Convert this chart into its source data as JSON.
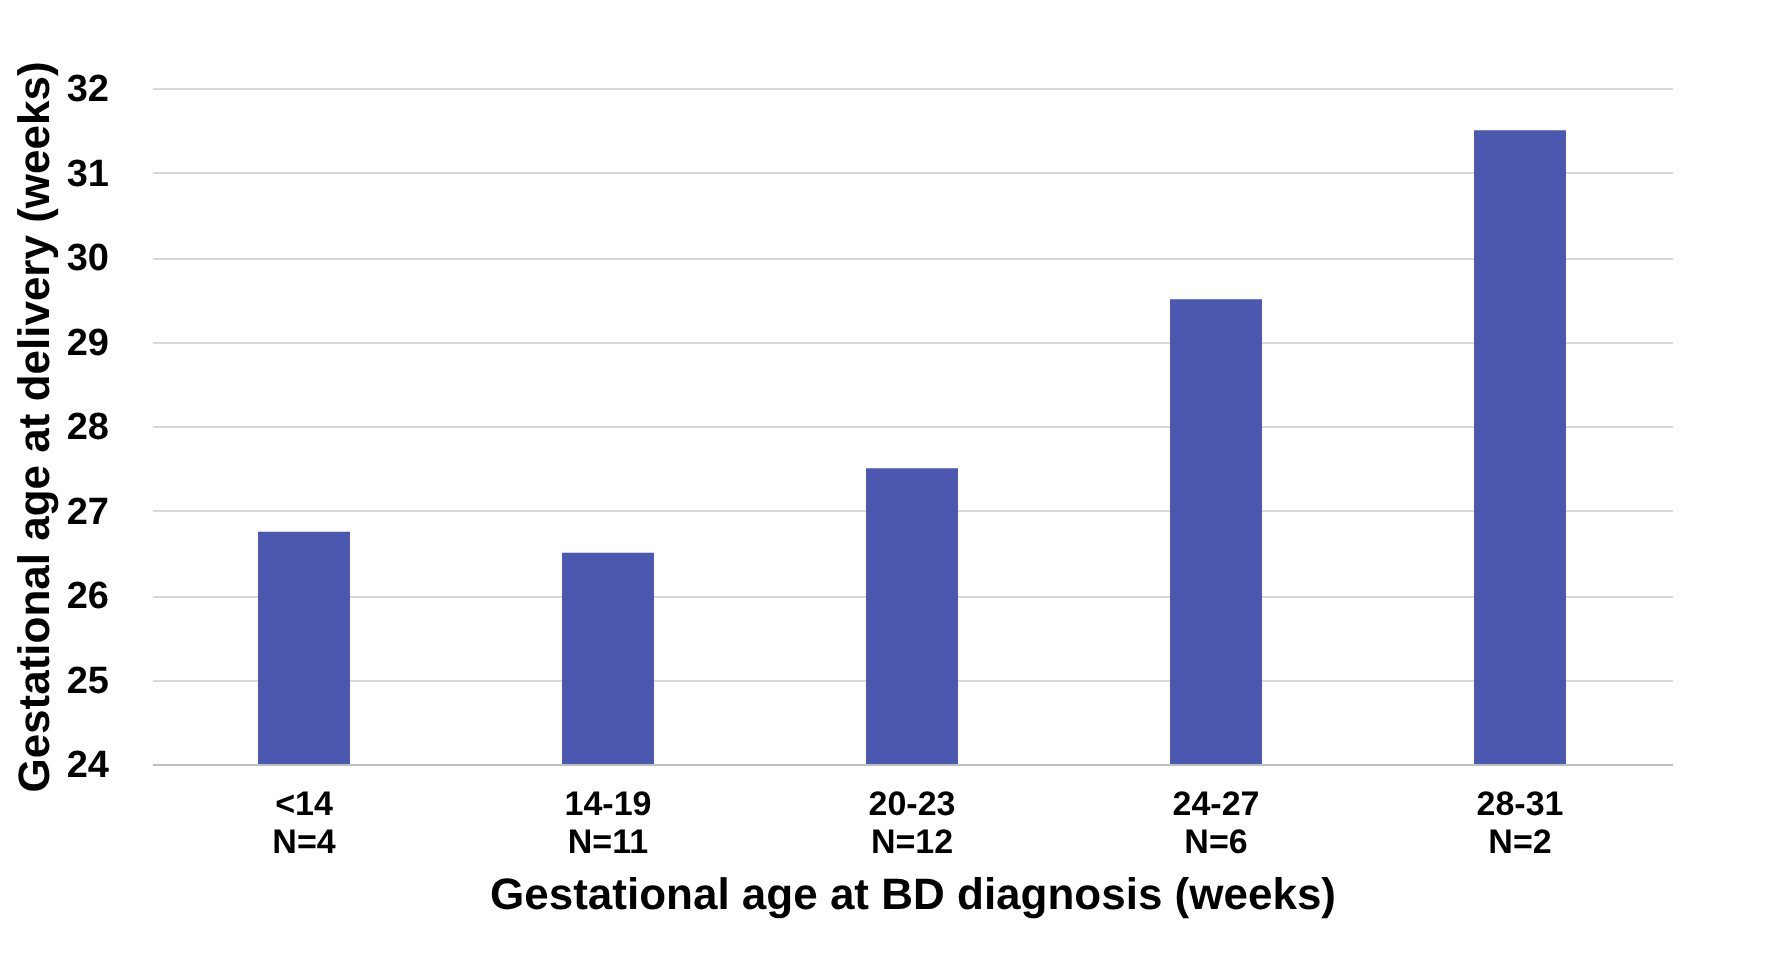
{
  "chart_data": {
    "type": "bar",
    "xlabel": "Gestational age at BD diagnosis (weeks)",
    "ylabel": "Gestational age at delivery (weeks)",
    "categories": [
      "<14\nN=4",
      "14-19\nN=11",
      "20-23\nN=12",
      "24-27\nN=6",
      "28-31\nN=2"
    ],
    "values": [
      26.75,
      26.5,
      27.5,
      29.5,
      31.5
    ],
    "color": "#4a58b0",
    "ylim": [
      24,
      32
    ],
    "yticks": [
      24,
      25,
      26,
      27,
      28,
      29,
      30,
      31,
      32
    ],
    "grid": "y"
  }
}
